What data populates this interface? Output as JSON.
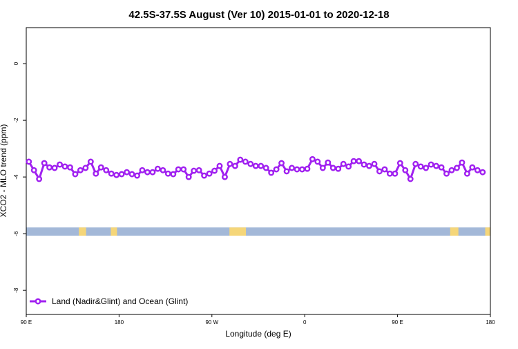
{
  "chart_data": {
    "type": "line",
    "title": "42.5S-37.5S August (Ver 10)   2015-01-01 to 2020-12-18",
    "x_label": "Longitude (deg E)",
    "y_label": "XCO2 - MLO trend (ppm)",
    "legend_position": "bottom-left",
    "xlim": [
      90,
      540
    ],
    "xticks": [
      {
        "value": 90,
        "label": "90 E"
      },
      180,
      {
        "value": 270,
        "label": "90 W"
      },
      {
        "value": 360,
        "label": "0"
      },
      {
        "value": 450,
        "label": "90 E"
      },
      {
        "value": 540,
        "label": "180"
      }
    ],
    "ylim": [
      -8.85,
      1.27
    ],
    "yticks": [
      0,
      -2,
      -4,
      -6,
      -8
    ],
    "x": [
      92.5,
      97.5,
      102.5,
      107.5,
      112.5,
      117.5,
      122.5,
      127.5,
      132.5,
      137.5,
      142.5,
      147.5,
      152.5,
      157.5,
      162.5,
      167.5,
      172.5,
      177.5,
      182.5,
      187.5,
      192.5,
      197.5,
      202.5,
      207.5,
      212.5,
      217.5,
      222.5,
      227.5,
      232.5,
      237.5,
      242.5,
      247.5,
      252.5,
      257.5,
      262.5,
      267.5,
      272.5,
      277.5,
      282.5,
      287.5,
      292.5,
      297.5,
      302.5,
      307.5,
      312.5,
      317.5,
      322.5,
      327.5,
      332.5,
      337.5,
      342.5,
      347.5,
      352.5,
      357.5,
      362.5,
      367.5,
      372.5,
      377.5,
      382.5,
      387.5,
      392.5,
      397.5,
      402.5,
      407.5,
      412.5,
      417.5,
      422.5,
      427.5,
      432.5,
      437.5,
      442.5,
      447.5,
      452.5,
      457.5,
      462.5,
      467.5,
      472.5,
      477.5,
      482.5,
      487.5,
      492.5,
      497.5,
      502.5,
      507.5,
      512.5,
      517.5,
      522.5,
      527.5,
      532.5
    ],
    "series": [
      {
        "name": "Land (Nadir&Glint) and Ocean (Glint)",
        "color": "#a020f0",
        "values": [
          -3.46,
          -3.76,
          -4.07,
          -3.51,
          -3.66,
          -3.68,
          -3.56,
          -3.63,
          -3.66,
          -3.9,
          -3.76,
          -3.68,
          -3.46,
          -3.88,
          -3.66,
          -3.76,
          -3.88,
          -3.93,
          -3.9,
          -3.83,
          -3.9,
          -3.95,
          -3.76,
          -3.83,
          -3.83,
          -3.71,
          -3.76,
          -3.88,
          -3.9,
          -3.73,
          -3.73,
          -4.0,
          -3.78,
          -3.76,
          -3.95,
          -3.88,
          -3.78,
          -3.61,
          -4.0,
          -3.54,
          -3.61,
          -3.39,
          -3.46,
          -3.54,
          -3.61,
          -3.61,
          -3.68,
          -3.85,
          -3.73,
          -3.51,
          -3.8,
          -3.68,
          -3.73,
          -3.73,
          -3.71,
          -3.37,
          -3.46,
          -3.68,
          -3.49,
          -3.68,
          -3.71,
          -3.54,
          -3.63,
          -3.44,
          -3.44,
          -3.56,
          -3.61,
          -3.54,
          -3.8,
          -3.73,
          -3.88,
          -3.88,
          -3.51,
          -3.76,
          -4.07,
          -3.54,
          -3.63,
          -3.68,
          -3.56,
          -3.61,
          -3.66,
          -3.88,
          -3.76,
          -3.68,
          -3.49,
          -3.88,
          -3.66,
          -3.76,
          -3.83
        ]
      }
    ],
    "strip": {
      "y": [
        -6.07,
        -5.78
      ],
      "ocean_color": "#a3b8d8",
      "land_color": "#f5d679",
      "land": [
        [
          141,
          148
        ],
        [
          172,
          178
        ],
        [
          287,
          303
        ],
        [
          501,
          509
        ],
        [
          535,
          540
        ]
      ]
    }
  }
}
